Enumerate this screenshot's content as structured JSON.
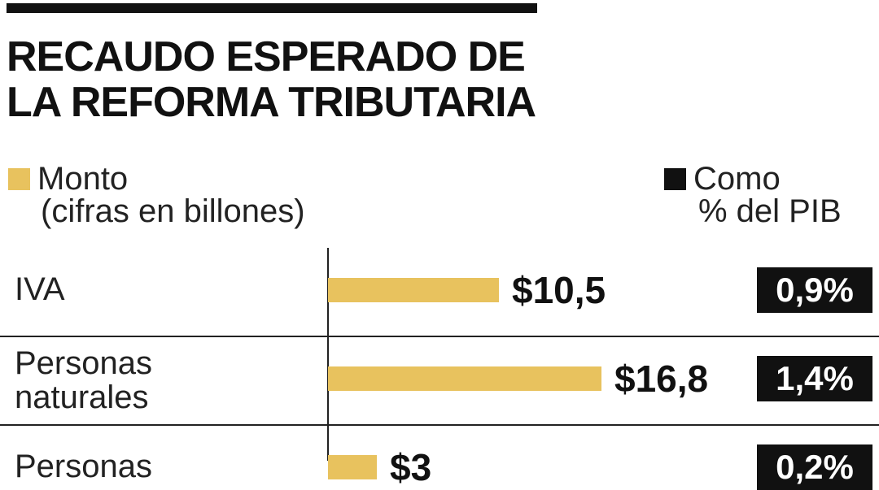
{
  "colors": {
    "monto": "#E8C25E",
    "pib": "#111111"
  },
  "title": {
    "line1": "RECAUDO ESPERADO DE",
    "line2": "LA REFORMA TRIBUTARIA"
  },
  "legend": {
    "monto": {
      "label": "Monto",
      "sublabel": "(cifras en billones)"
    },
    "pib": {
      "label": "Como",
      "sublabel": "% del PIB"
    }
  },
  "chart_data": {
    "type": "bar",
    "orientation": "horizontal",
    "title": "RECAUDO ESPERADO DE LA REFORMA TRIBUTARIA",
    "categories": [
      "IVA",
      "Personas naturales",
      "Personas"
    ],
    "series": [
      {
        "name": "Monto",
        "values": [
          10.5,
          16.8,
          3
        ]
      },
      {
        "name": "Como % del PIB",
        "values": [
          0.9,
          1.4,
          0.2
        ]
      }
    ],
    "value_labels": [
      "$10,5",
      "$16,8",
      "$3"
    ],
    "pct_labels": [
      "0,9%",
      "1,4%",
      "0,2%"
    ],
    "grid": false
  }
}
